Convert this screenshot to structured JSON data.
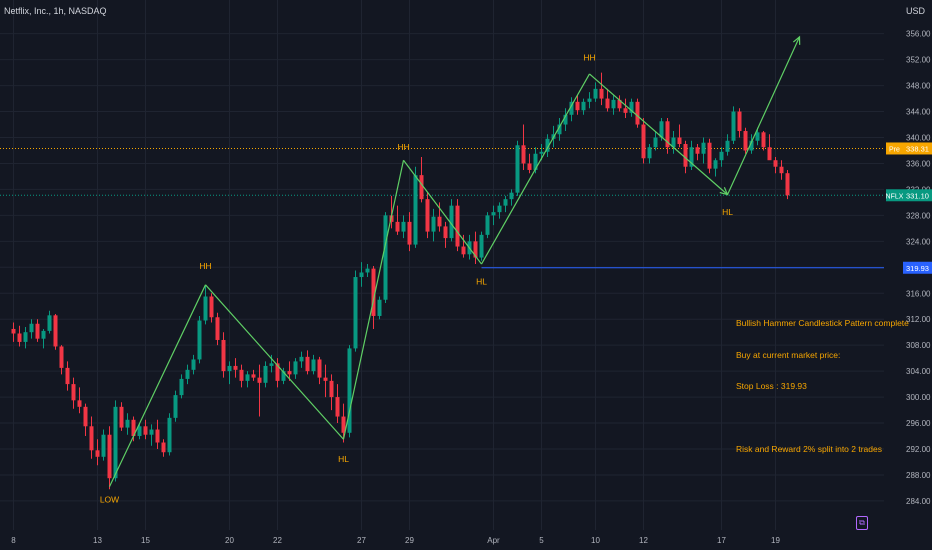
{
  "header": {
    "title": "Netflix, Inc., 1h, NASDAQ",
    "currency": "USD"
  },
  "note": {
    "lines": [
      "Bullish Hammer Candlestick Pattern complete",
      "Buy at current market price:",
      "Stop Loss : 319.93",
      "",
      "Risk and Reward 2% split into 2 trades"
    ]
  },
  "price_tags": {
    "pre": {
      "label": "Pre",
      "value": "338.31",
      "price": 338.31,
      "color": "#f7a600"
    },
    "last": {
      "label": "NFLX",
      "value": "331.10",
      "price": 331.1,
      "color": "#089981"
    },
    "stop": {
      "label": "",
      "value": "319.93",
      "price": 319.93,
      "color": "#2962ff"
    }
  },
  "colors": {
    "up": "#089981",
    "down": "#f23645",
    "wave": "#5fcf65",
    "label": "#f7a600",
    "grid": "#1f2431",
    "axis_text": "#b2b5be"
  },
  "logo_icon": "tradingview-logo-icon",
  "chart_data": {
    "type": "candlestick",
    "symbol": "NFLX",
    "interval": "1h",
    "y_axis": {
      "min": 282.6,
      "max": 357.8,
      "ticks": [
        284,
        288,
        292,
        296,
        300,
        304,
        308,
        312,
        316,
        320,
        324,
        328,
        332,
        336,
        340,
        344,
        348,
        352,
        356
      ]
    },
    "x_axis": {
      "ticks": [
        {
          "label": "8",
          "index": 0
        },
        {
          "label": "13",
          "index": 14
        },
        {
          "label": "15",
          "index": 22
        },
        {
          "label": "20",
          "index": 36
        },
        {
          "label": "22",
          "index": 44
        },
        {
          "label": "27",
          "index": 58
        },
        {
          "label": "29",
          "index": 66
        },
        {
          "label": "Apr",
          "index": 80
        },
        {
          "label": "5",
          "index": 88
        },
        {
          "label": "10",
          "index": 97
        },
        {
          "label": "12",
          "index": 105
        },
        {
          "label": "17",
          "index": 118
        },
        {
          "label": "19",
          "index": 127
        }
      ]
    },
    "candles": [
      [
        310.5,
        311.5,
        308.5,
        309.8
      ],
      [
        309.8,
        311,
        307.8,
        308.5
      ],
      [
        308.5,
        310.8,
        307.5,
        310
      ],
      [
        310,
        312,
        309,
        311.3
      ],
      [
        311.3,
        312,
        308.5,
        309
      ],
      [
        309,
        310.5,
        307.5,
        310.2
      ],
      [
        310.2,
        313.3,
        309.8,
        312.6
      ],
      [
        312.6,
        312.8,
        307.3,
        307.8
      ],
      [
        307.8,
        308,
        303.5,
        304.5
      ],
      [
        304.5,
        305.5,
        301,
        302
      ],
      [
        302,
        303,
        298.2,
        299.5
      ],
      [
        299.5,
        301.5,
        297.5,
        298.5
      ],
      [
        298.5,
        299,
        294,
        295.5
      ],
      [
        295.5,
        297,
        290.5,
        291.8
      ],
      [
        291.8,
        293.5,
        289.5,
        290.8
      ],
      [
        290.8,
        295,
        290.2,
        294.2
      ],
      [
        294.2,
        295.5,
        285.8,
        287.5
      ],
      [
        287.5,
        299.5,
        287,
        298.5
      ],
      [
        298.5,
        299.2,
        294.8,
        295.3
      ],
      [
        295.3,
        297.5,
        294.2,
        296.5
      ],
      [
        296.5,
        297,
        293.2,
        294
      ],
      [
        294,
        296,
        293.5,
        295.5
      ],
      [
        295.5,
        296.5,
        293.5,
        294.2
      ],
      [
        294.2,
        295.8,
        292.5,
        295
      ],
      [
        295,
        296.5,
        292,
        293
      ],
      [
        293,
        293.5,
        290.8,
        291.5
      ],
      [
        291.5,
        297.5,
        291,
        296.8
      ],
      [
        296.8,
        301,
        296.2,
        300.3
      ],
      [
        300.3,
        303.5,
        299.8,
        302.8
      ],
      [
        302.8,
        305,
        302,
        304.2
      ],
      [
        304.2,
        306.5,
        303.5,
        305.8
      ],
      [
        305.8,
        312.5,
        305.2,
        311.8
      ],
      [
        311.8,
        317.2,
        311.2,
        315.5
      ],
      [
        315.5,
        316,
        311.5,
        312.3
      ],
      [
        312.3,
        313,
        308,
        308.8
      ],
      [
        308.8,
        310,
        303,
        304
      ],
      [
        304,
        305.5,
        302,
        304.8
      ],
      [
        304.8,
        306,
        303,
        304.2
      ],
      [
        304.2,
        305,
        301.5,
        302.5
      ],
      [
        302.5,
        304,
        301.5,
        303.5
      ],
      [
        303.5,
        304.2,
        302.5,
        303
      ],
      [
        303,
        305,
        297,
        302.2
      ],
      [
        302.2,
        305.5,
        301.5,
        304.8
      ],
      [
        304.8,
        306.5,
        303.8,
        305.2
      ],
      [
        305.2,
        306,
        301.5,
        302.5
      ],
      [
        302.5,
        304.5,
        302,
        304
      ],
      [
        304,
        305.5,
        302.5,
        303.5
      ],
      [
        303.5,
        306,
        302.8,
        305.5
      ],
      [
        305.5,
        307,
        304.5,
        306.2
      ],
      [
        306.2,
        307.2,
        303.5,
        304
      ],
      [
        304,
        306.5,
        303.5,
        305.8
      ],
      [
        305.8,
        306.2,
        302,
        303
      ],
      [
        303,
        305,
        300,
        302.5
      ],
      [
        302.5,
        303.5,
        298,
        300
      ],
      [
        300,
        302,
        296,
        297
      ],
      [
        297,
        299,
        293,
        294.5
      ],
      [
        294.5,
        308,
        293.8,
        307.5
      ],
      [
        307.5,
        319.5,
        307,
        318.5
      ],
      [
        318.5,
        320.8,
        317,
        319.2
      ],
      [
        319.2,
        320.5,
        318.5,
        319.8
      ],
      [
        319.8,
        320.2,
        310.5,
        312.5
      ],
      [
        312.5,
        315.5,
        312,
        315
      ],
      [
        315,
        328.5,
        314.5,
        328
      ],
      [
        328,
        331,
        326,
        327
      ],
      [
        327,
        329.5,
        325,
        325.5
      ],
      [
        325.5,
        328,
        324.5,
        327
      ],
      [
        327,
        328.5,
        322.5,
        323.5
      ],
      [
        323.5,
        335.5,
        323,
        334.2
      ],
      [
        334.2,
        337,
        330,
        330.5
      ],
      [
        330.5,
        331.5,
        324.5,
        325.5
      ],
      [
        325.5,
        329,
        324,
        327.8
      ],
      [
        327.8,
        330,
        325.5,
        326.3
      ],
      [
        326.3,
        327,
        323,
        324.5
      ],
      [
        324.5,
        330.5,
        324,
        329.5
      ],
      [
        329.5,
        330.5,
        322.5,
        323.2
      ],
      [
        323.2,
        325,
        321.5,
        322
      ],
      [
        322,
        325,
        321.2,
        324
      ],
      [
        324,
        325.5,
        320.5,
        321.5
      ],
      [
        321.5,
        325.5,
        321,
        325
      ],
      [
        325,
        328.5,
        324.5,
        328
      ],
      [
        328,
        329.5,
        326.5,
        328.5
      ],
      [
        328.5,
        330,
        327.5,
        329.5
      ],
      [
        329.5,
        331,
        328.5,
        330.5
      ],
      [
        330.5,
        332,
        329.5,
        331.5
      ],
      [
        331.5,
        339.5,
        331,
        338.8
      ],
      [
        338.8,
        342,
        335,
        336
      ],
      [
        336,
        337.5,
        334.5,
        335
      ],
      [
        335,
        338.5,
        334.5,
        337.5
      ],
      [
        337.5,
        339,
        336.5,
        337.8
      ],
      [
        337.8,
        340.5,
        337,
        339.8
      ],
      [
        339.8,
        341.8,
        338.5,
        340.5
      ],
      [
        340.5,
        343,
        339.5,
        342
      ],
      [
        342,
        344.5,
        341,
        343.5
      ],
      [
        343.5,
        346.2,
        342.5,
        345.5
      ],
      [
        345.5,
        346.5,
        343.5,
        344.2
      ],
      [
        344.2,
        346,
        343.5,
        345.5
      ],
      [
        345.5,
        347,
        344.5,
        346
      ],
      [
        346,
        348.5,
        345.5,
        347.5
      ],
      [
        347.5,
        350,
        345,
        346
      ],
      [
        346,
        347.5,
        344,
        344.5
      ],
      [
        344.5,
        346.5,
        343.5,
        345.8
      ],
      [
        345.8,
        346.5,
        344,
        344.5
      ],
      [
        344.5,
        346,
        343,
        343.8
      ],
      [
        343.8,
        346,
        343.2,
        345.5
      ],
      [
        345.5,
        346,
        341.5,
        342
      ],
      [
        342,
        343,
        336,
        336.8
      ],
      [
        336.8,
        339,
        336,
        338.5
      ],
      [
        338.5,
        341,
        338,
        340
      ],
      [
        340,
        343,
        339.5,
        342.5
      ],
      [
        342.5,
        343,
        337.5,
        338.5
      ],
      [
        338.5,
        341,
        337.5,
        340
      ],
      [
        340,
        342,
        338.5,
        339
      ],
      [
        339,
        339.5,
        334.5,
        335.5
      ],
      [
        335.5,
        339.5,
        335,
        338.5
      ],
      [
        338.5,
        339,
        336.5,
        337.5
      ],
      [
        337.5,
        340,
        336,
        339.2
      ],
      [
        339.2,
        339.8,
        334.5,
        335.2
      ],
      [
        335.2,
        336.8,
        334,
        336.5
      ],
      [
        336.5,
        338.5,
        335.5,
        337.8
      ],
      [
        337.8,
        340.5,
        337.2,
        339.5
      ],
      [
        339.5,
        344.8,
        339,
        344
      ],
      [
        344,
        344.5,
        340,
        341
      ],
      [
        341,
        341.5,
        337.5,
        338
      ],
      [
        338,
        340.5,
        337.5,
        339.5
      ],
      [
        339.5,
        341.5,
        338.8,
        340.8
      ],
      [
        340.8,
        341,
        338,
        338.5
      ],
      [
        338.5,
        340.5,
        337,
        336.5
      ],
      [
        336.5,
        337,
        334.5,
        335.5
      ],
      [
        335.5,
        336.5,
        333.5,
        334.5
      ],
      [
        334.5,
        335,
        330.5,
        331.1
      ]
    ],
    "annotations": [
      {
        "text": "LOW",
        "candle": 16,
        "price": 286.2
      },
      {
        "text": "HH",
        "candle": 32,
        "price": 318.2
      },
      {
        "text": "HL",
        "candle": 55,
        "price": 292.5
      },
      {
        "text": "HH",
        "candle": 65,
        "price": 336.5
      },
      {
        "text": "HL",
        "candle": 78,
        "price": 319.8
      },
      {
        "text": "HH",
        "candle": 96,
        "price": 350.3
      },
      {
        "text": "HL",
        "candle": 119,
        "price": 330.5
      }
    ],
    "wave_path": [
      {
        "candle": 16,
        "price": 286.2
      },
      {
        "candle": 32,
        "price": 317.3
      },
      {
        "candle": 55,
        "price": 293.5
      },
      {
        "candle": 65,
        "price": 336.5
      },
      {
        "candle": 78,
        "price": 320.5
      },
      {
        "candle": 96,
        "price": 349.8
      },
      {
        "candle": 119,
        "price": 331.2
      },
      {
        "candle": 131,
        "price": 355.5
      }
    ],
    "horizontal_lines": [
      {
        "price": 338.31,
        "color": "#f7a600",
        "style": "dotted",
        "from_candle": 0
      },
      {
        "price": 331.1,
        "color": "#089981",
        "style": "dotted",
        "from_candle": 0
      },
      {
        "price": 319.93,
        "color": "#2962ff",
        "style": "solid",
        "from_candle": 78
      }
    ],
    "grid": true
  }
}
